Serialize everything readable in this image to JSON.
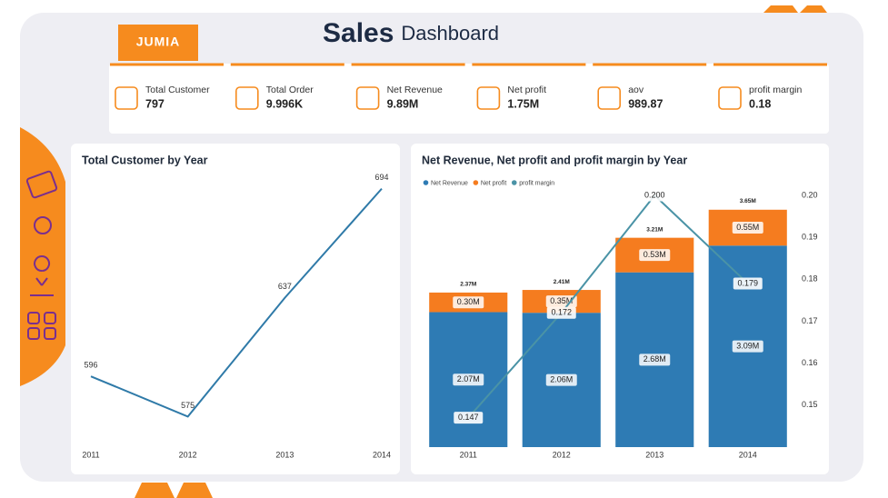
{
  "header": {
    "brand": "JUMIA",
    "title": "Sales",
    "subtitle": "Dashboard"
  },
  "kpis": [
    {
      "label": "Total Customer",
      "value": "797"
    },
    {
      "label": "Total Order",
      "value": "9.996K"
    },
    {
      "label": "Net Revenue",
      "value": "9.89M"
    },
    {
      "label": "Net profit",
      "value": "1.75M"
    },
    {
      "label": "aov",
      "value": "989.87"
    },
    {
      "label": "profit margin",
      "value": "0.18"
    }
  ],
  "chart_data": [
    {
      "type": "line",
      "title": "Total Customer by Year",
      "categories": [
        "2011",
        "2012",
        "2013",
        "2014"
      ],
      "values": [
        596,
        575,
        637,
        694
      ],
      "color": "#2f7aa8",
      "ylim": [
        560,
        700
      ]
    },
    {
      "type": "bar",
      "stacked": true,
      "title": "Net Revenue, Net profit and profit margin by Year",
      "categories": [
        "2011",
        "2012",
        "2013",
        "2014"
      ],
      "ylim": [
        0,
        3860000
      ],
      "y2lim": [
        0.14,
        0.2
      ],
      "y2ticks": [
        0.15,
        0.16,
        0.17,
        0.18,
        0.19,
        {
          "value": 0.2,
          "label": "0.20"
        }
      ],
      "legend": "top-left",
      "totals": [
        2370000,
        2410000,
        3210000,
        3650000
      ],
      "total_labels": [
        "2.37M",
        "2.41M",
        "3.21M",
        "3.65M"
      ],
      "series": [
        {
          "name": "Net Revenue",
          "color": "#2e7bb4",
          "values": [
            2070000,
            2060000,
            2680000,
            3090000
          ],
          "value_labels": [
            "2.07M",
            "2.06M",
            "2.68M",
            "3.09M"
          ]
        },
        {
          "name": "Net profit",
          "color": "#f57c1f",
          "values": [
            300000,
            350000,
            530000,
            550000
          ],
          "value_labels": [
            "0.30M",
            "0.35M",
            "0.53M",
            "0.55M"
          ]
        },
        {
          "name": "profit margin",
          "color": "#4a93a6",
          "axis": "y2",
          "type": "line",
          "values": [
            0.147,
            0.172,
            0.2,
            0.179
          ],
          "value_labels": [
            "0.147",
            "0.172",
            "0.200",
            "0.179"
          ]
        }
      ]
    }
  ]
}
